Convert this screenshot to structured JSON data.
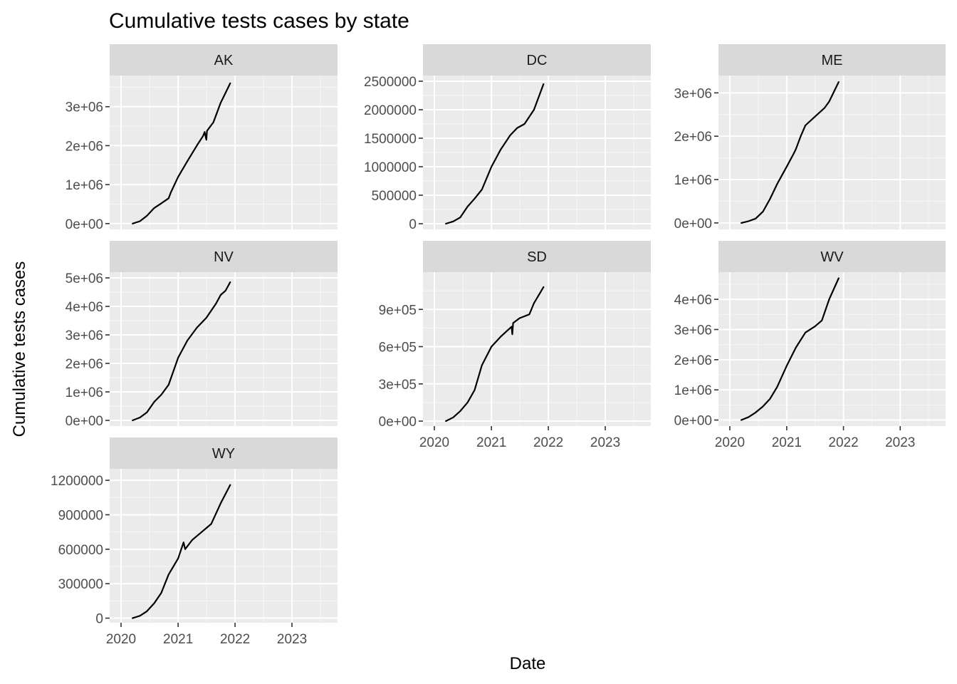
{
  "chart_data": {
    "type": "line",
    "title": "Cumulative tests cases by state",
    "xlabel": "Date",
    "ylabel": "Cumulative tests cases",
    "x_ticks": [
      "2020",
      "2021",
      "2022",
      "2023"
    ],
    "xlim": [
      "2019-10-20",
      "2023-10-20"
    ],
    "colors": {
      "panel_bg": "#ebebeb",
      "strip_bg": "#d9d9d9",
      "grid_major": "#ffffff",
      "line": "#000000"
    },
    "facets": [
      {
        "name": "AK",
        "ylim": [
          -150000,
          3800000
        ],
        "y_ticks": [
          0,
          1000000,
          2000000,
          3000000
        ],
        "y_tick_labels": [
          "0e+00",
          "1e+06",
          "2e+06",
          "3e+06"
        ],
        "x": [
          "2020-03-15",
          "2020-05-01",
          "2020-06-15",
          "2020-08-01",
          "2020-09-15",
          "2020-11-01",
          "2020-11-15",
          "2021-01-01",
          "2021-03-01",
          "2021-05-01",
          "2021-06-10",
          "2021-06-20",
          "2021-07-01",
          "2021-07-05",
          "2021-08-15",
          "2021-10-01",
          "2021-12-01"
        ],
        "y": [
          0,
          60000,
          200000,
          400000,
          520000,
          650000,
          800000,
          1200000,
          1600000,
          2000000,
          2250000,
          2350000,
          2150000,
          2380000,
          2600000,
          3100000,
          3600000
        ]
      },
      {
        "name": "DC",
        "ylim": [
          -100000,
          2600000
        ],
        "y_ticks": [
          0,
          500000,
          1000000,
          1500000,
          2000000,
          2500000
        ],
        "y_tick_labels": [
          "0",
          "500000",
          "1000000",
          "1500000",
          "2000000",
          "2500000"
        ],
        "x": [
          "2020-03-15",
          "2020-05-01",
          "2020-06-15",
          "2020-08-01",
          "2020-09-15",
          "2020-11-01",
          "2021-01-01",
          "2021-03-01",
          "2021-05-01",
          "2021-06-15",
          "2021-08-01",
          "2021-10-01",
          "2021-12-01"
        ],
        "y": [
          0,
          40000,
          110000,
          300000,
          440000,
          600000,
          1000000,
          1300000,
          1550000,
          1680000,
          1750000,
          2000000,
          2450000
        ]
      },
      {
        "name": "ME",
        "ylim": [
          -150000,
          3400000
        ],
        "y_ticks": [
          0,
          1000000,
          2000000,
          3000000
        ],
        "y_tick_labels": [
          "0e+00",
          "1e+06",
          "2e+06",
          "3e+06"
        ],
        "x": [
          "2020-03-15",
          "2020-05-01",
          "2020-06-15",
          "2020-08-01",
          "2020-09-15",
          "2020-11-01",
          "2021-01-01",
          "2021-02-15",
          "2021-03-01",
          "2021-04-01",
          "2021-05-01",
          "2021-07-01",
          "2021-09-01",
          "2021-10-01",
          "2021-12-01"
        ],
        "y": [
          0,
          40000,
          100000,
          260000,
          550000,
          900000,
          1300000,
          1600000,
          1700000,
          2000000,
          2250000,
          2450000,
          2650000,
          2800000,
          3250000
        ]
      },
      {
        "name": "NV",
        "ylim": [
          -200000,
          5200000
        ],
        "y_ticks": [
          0,
          1000000,
          2000000,
          3000000,
          4000000,
          5000000
        ],
        "y_tick_labels": [
          "0e+00",
          "1e+06",
          "2e+06",
          "3e+06",
          "4e+06",
          "5e+06"
        ],
        "x": [
          "2020-03-15",
          "2020-05-01",
          "2020-06-15",
          "2020-08-01",
          "2020-09-15",
          "2020-11-01",
          "2021-01-01",
          "2021-03-01",
          "2021-05-01",
          "2021-07-01",
          "2021-09-01",
          "2021-10-01",
          "2021-11-01",
          "2021-12-01"
        ],
        "y": [
          0,
          100000,
          280000,
          650000,
          900000,
          1250000,
          2200000,
          2800000,
          3250000,
          3600000,
          4100000,
          4400000,
          4550000,
          4850000
        ]
      },
      {
        "name": "SD",
        "ylim": [
          -40000,
          1200000
        ],
        "y_ticks": [
          0,
          300000,
          600000,
          900000
        ],
        "y_tick_labels": [
          "0e+00",
          "3e+05",
          "6e+05",
          "9e+05"
        ],
        "x": [
          "2020-03-15",
          "2020-05-01",
          "2020-06-15",
          "2020-08-01",
          "2020-09-15",
          "2020-11-01",
          "2021-01-01",
          "2021-03-01",
          "2021-05-10",
          "2021-05-15",
          "2021-05-20",
          "2021-07-01",
          "2021-09-01",
          "2021-10-01",
          "2021-12-01"
        ],
        "y": [
          0,
          30000,
          80000,
          150000,
          250000,
          450000,
          600000,
          680000,
          760000,
          700000,
          790000,
          830000,
          860000,
          950000,
          1080000
        ]
      },
      {
        "name": "WV",
        "ylim": [
          -200000,
          4900000
        ],
        "y_ticks": [
          0,
          1000000,
          2000000,
          3000000,
          4000000
        ],
        "y_tick_labels": [
          "0e+00",
          "1e+06",
          "2e+06",
          "3e+06",
          "4e+06"
        ],
        "x": [
          "2020-03-15",
          "2020-05-01",
          "2020-06-15",
          "2020-08-01",
          "2020-09-15",
          "2020-11-01",
          "2021-01-01",
          "2021-03-01",
          "2021-05-01",
          "2021-07-01",
          "2021-08-15",
          "2021-10-01",
          "2021-12-01"
        ],
        "y": [
          0,
          100000,
          250000,
          450000,
          700000,
          1100000,
          1800000,
          2400000,
          2900000,
          3100000,
          3300000,
          4000000,
          4700000
        ]
      },
      {
        "name": "WY",
        "ylim": [
          -40000,
          1300000
        ],
        "y_ticks": [
          0,
          300000,
          600000,
          900000,
          1200000
        ],
        "y_tick_labels": [
          "0",
          "300000",
          "600000",
          "900000",
          "1200000"
        ],
        "x": [
          "2020-03-15",
          "2020-05-01",
          "2020-06-15",
          "2020-08-01",
          "2020-09-15",
          "2020-11-01",
          "2021-01-01",
          "2021-02-05",
          "2021-02-15",
          "2021-04-01",
          "2021-06-01",
          "2021-08-01",
          "2021-10-01",
          "2021-12-01"
        ],
        "y": [
          0,
          20000,
          60000,
          130000,
          220000,
          380000,
          520000,
          660000,
          600000,
          680000,
          750000,
          820000,
          1000000,
          1160000
        ]
      }
    ]
  }
}
